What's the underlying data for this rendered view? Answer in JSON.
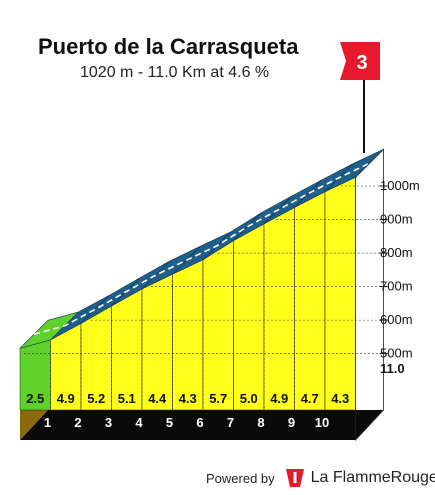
{
  "header": {
    "title": "Puerto de la Carrasqueta",
    "subtitle": "1020 m - 11.0 Km at 4.6 %"
  },
  "category_flag": "3",
  "footer": {
    "powered_label": "Powered by",
    "brand": "La FlammeRouge",
    "brand_icon": "flame-rouge-logo"
  },
  "colors": {
    "climb_fill": "#ffff1a",
    "first_km_fill": "#5fd12b",
    "road": "#1f5f8a",
    "road_dash": "#ffffff",
    "base": "#0a0a0a",
    "side_wall": "#8b6a0d",
    "flag": "#e8192c"
  },
  "chart_data": {
    "type": "area",
    "x_unit": "km",
    "y_unit": "m",
    "km_markers": [
      "1",
      "2",
      "3",
      "4",
      "5",
      "6",
      "7",
      "8",
      "9",
      "10"
    ],
    "finish_distance": "11.0",
    "segment_gradients": [
      2.5,
      4.9,
      5.2,
      5.1,
      4.4,
      4.3,
      5.7,
      5.0,
      4.9,
      4.7,
      4.3
    ],
    "segment_gradient_labels": [
      "2.5",
      "4.9",
      "5.2",
      "5.1",
      "4.4",
      "4.3",
      "5.7",
      "5.0",
      "4.9",
      "4.7",
      "4.3"
    ],
    "elevation_ticks": [
      1000,
      900,
      800,
      700,
      600,
      500
    ],
    "elevation_tick_labels": [
      "1000m",
      "900m",
      "800m",
      "700m",
      "600m",
      "500m"
    ],
    "start_elevation": 516,
    "summit_elevation": 1020,
    "xlim": [
      0,
      11
    ],
    "ylim": [
      500,
      1020
    ]
  }
}
